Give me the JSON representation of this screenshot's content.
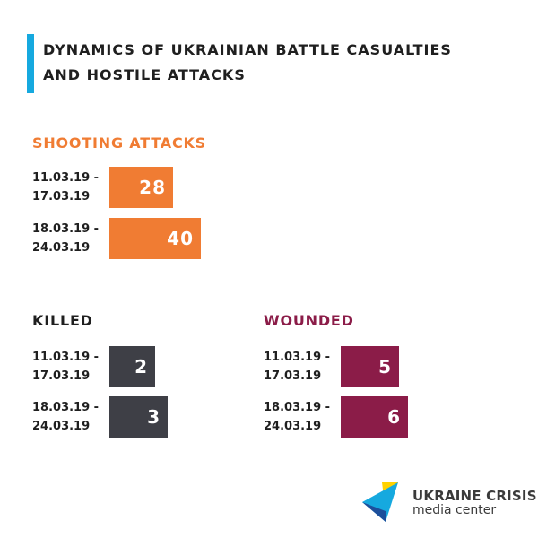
{
  "header": {
    "title_line1": "Dynamics of Ukrainian battle casualties",
    "title_line2": "and hostile attacks",
    "accent_color": "#16a9df"
  },
  "chart_data": [
    {
      "type": "bar",
      "title": "Shooting attacks",
      "color": "#f07c33",
      "categories": [
        [
          "11.03.19 -",
          "17.03.19"
        ],
        [
          "18.03.19 -",
          "24.03.19"
        ]
      ],
      "values": [
        28,
        40
      ]
    },
    {
      "type": "bar",
      "title": "Killed",
      "color": "#3e3f46",
      "categories": [
        [
          "11.03.19 -",
          "17.03.19"
        ],
        [
          "18.03.19 -",
          "24.03.19"
        ]
      ],
      "values": [
        2,
        3
      ]
    },
    {
      "type": "bar",
      "title": "Wounded",
      "color": "#8b1c48",
      "categories": [
        [
          "11.03.19 -",
          "17.03.19"
        ],
        [
          "18.03.19 -",
          "24.03.19"
        ]
      ],
      "values": [
        5,
        6
      ]
    }
  ],
  "logo": {
    "brand": "UKRAINE CRISIS",
    "sub": "media center",
    "colors": [
      "#ffd200",
      "#16a9df",
      "#1d4f9b"
    ],
    "icon": "ukraine-crisis-logo-icon"
  }
}
